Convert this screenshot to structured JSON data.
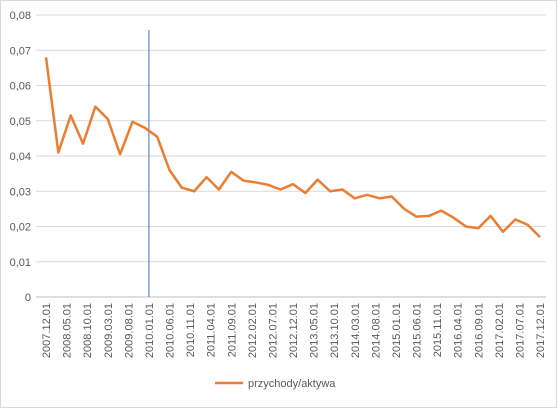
{
  "chart_data": {
    "type": "line",
    "x": [
      "2007.12.01",
      "2008.03.01",
      "2008.06.01",
      "2008.09.01",
      "2008.12.01",
      "2009.03.01",
      "2009.06.01",
      "2009.09.01",
      "2009.12.01",
      "2010.03.01",
      "2010.06.01",
      "2010.09.01",
      "2010.12.01",
      "2011.03.01",
      "2011.06.01",
      "2011.09.01",
      "2011.12.01",
      "2012.03.01",
      "2012.06.01",
      "2012.09.01",
      "2012.12.01",
      "2013.03.01",
      "2013.06.01",
      "2013.09.01",
      "2013.12.01",
      "2014.03.01",
      "2014.06.01",
      "2014.09.01",
      "2014.12.01",
      "2015.03.01",
      "2015.06.01",
      "2015.09.01",
      "2015.12.01",
      "2016.03.01",
      "2016.06.01",
      "2016.09.01",
      "2016.12.01",
      "2017.03.01",
      "2017.06.01",
      "2017.09.01",
      "2017.12.01"
    ],
    "series": [
      {
        "name": "przychody/aktywa",
        "color": "#ed7d31",
        "values": [
          0.068,
          0.041,
          0.0515,
          0.0435,
          0.054,
          0.0505,
          0.0405,
          0.0497,
          0.048,
          0.0455,
          0.036,
          0.031,
          0.03,
          0.034,
          0.0305,
          0.0355,
          0.033,
          0.0325,
          0.0318,
          0.0305,
          0.032,
          0.0295,
          0.0333,
          0.03,
          0.0305,
          0.028,
          0.029,
          0.028,
          0.0285,
          0.025,
          0.0228,
          0.023,
          0.0245,
          0.0225,
          0.02,
          0.0195,
          0.023,
          0.0185,
          0.022,
          0.0205,
          0.017
        ]
      }
    ],
    "xticks": [
      "2007.12.01",
      "2008.05.01",
      "2008.10.01",
      "2009.03.01",
      "2009.08.01",
      "2010.01.01",
      "2010.06.01",
      "2010.11.01",
      "2011.04.01",
      "2011.09.01",
      "2012.02.01",
      "2012.07.01",
      "2012.12.01",
      "2013.05.01",
      "2013.10.01",
      "2014.03.01",
      "2014.08.01",
      "2015.01.01",
      "2015.06.01",
      "2015.11.01",
      "2016.04.01",
      "2016.09.01",
      "2017.02.01",
      "2017.07.01",
      "2017.12.01"
    ],
    "vline": {
      "x": "2010.01.01",
      "color": "#4472c4"
    },
    "ylim": [
      0,
      0.08
    ],
    "yticks": [
      0,
      {
        "value": 0.01,
        "label": "0,01"
      },
      {
        "value": 0.02,
        "label": "0,02"
      },
      {
        "value": 0.03,
        "label": "0,03"
      },
      {
        "value": 0.04,
        "label": "0,04"
      },
      {
        "value": 0.05,
        "label": "0,05"
      },
      {
        "value": 0.06,
        "label": "0,06"
      },
      {
        "value": 0.07,
        "label": "0,07"
      },
      {
        "value": 0.08,
        "label": "0,08"
      }
    ],
    "grid": true,
    "legend": "bottom"
  }
}
